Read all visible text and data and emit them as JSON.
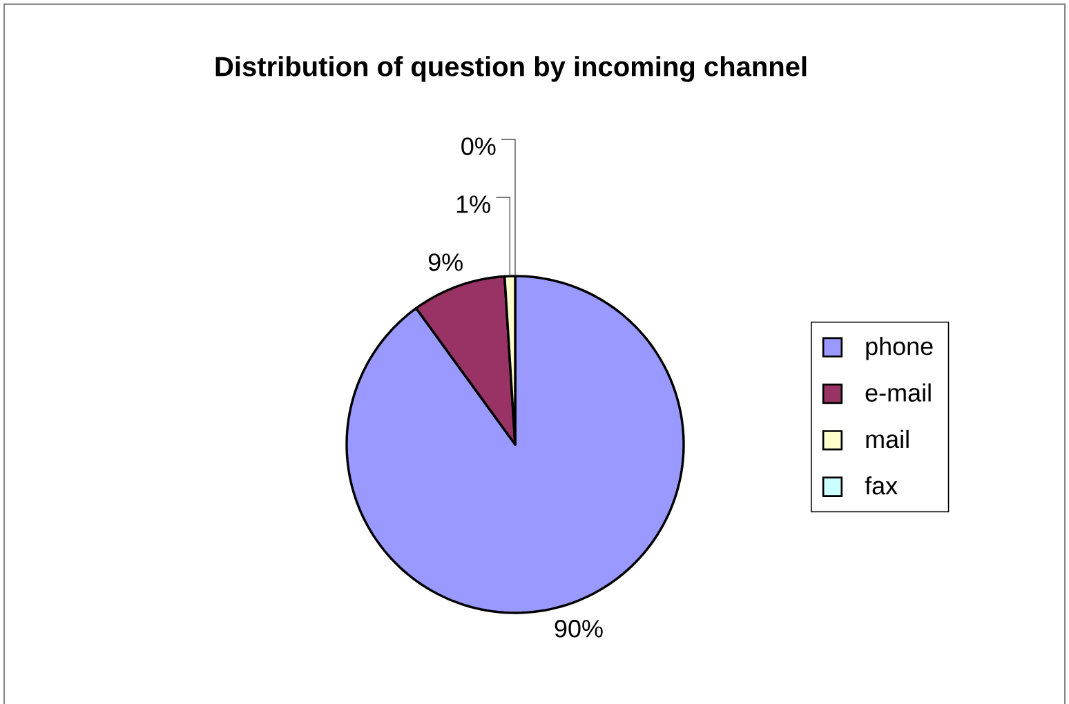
{
  "chart_data": {
    "type": "pie",
    "title": "Distribution of question by incoming channel",
    "categories": [
      "phone",
      "e-mail",
      "mail",
      "fax"
    ],
    "values": [
      90,
      9,
      1,
      0
    ],
    "colors": [
      "#9999ff",
      "#993366",
      "#ffffcc",
      "#ccffff"
    ],
    "value_labels": [
      "90%",
      "9%",
      "1%",
      "0%"
    ],
    "legend": "right"
  }
}
